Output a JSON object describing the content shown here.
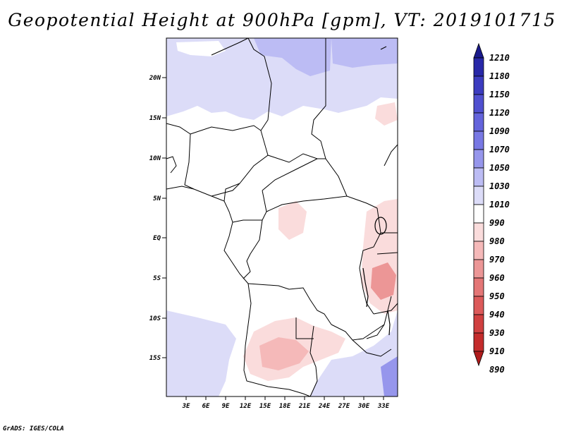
{
  "title": "Geopotential Height at 900hPa [gpm], VT: 2019101715",
  "footer": "GrADS: IGES/COLA",
  "map": {
    "lon_range": [
      0,
      35
    ],
    "lat_range": [
      -20,
      25
    ],
    "lat_labels": [
      "20N",
      "15N",
      "10N",
      "5N",
      "EQ",
      "5S",
      "10S",
      "15S"
    ],
    "lon_labels": [
      "3E",
      "6E",
      "9E",
      "12E",
      "15E",
      "18E",
      "21E",
      "24E",
      "27E",
      "30E",
      "33E"
    ]
  },
  "colorbar": {
    "labels": [
      "1210",
      "1180",
      "1150",
      "1120",
      "1090",
      "1070",
      "1050",
      "1030",
      "1010",
      "990",
      "980",
      "970",
      "960",
      "950",
      "940",
      "930",
      "910",
      "890"
    ],
    "colors": [
      "#1a1a8c",
      "#2828a8",
      "#3c3cc0",
      "#5050d0",
      "#6464dc",
      "#7878e4",
      "#9696ec",
      "#bcbcf4",
      "#dcdcf8",
      "#ffffff",
      "#fadcdc",
      "#f5b9b9",
      "#ec9696",
      "#e47676",
      "#dc5a5a",
      "#d04040",
      "#c42c2c",
      "#b01c1c"
    ]
  }
}
